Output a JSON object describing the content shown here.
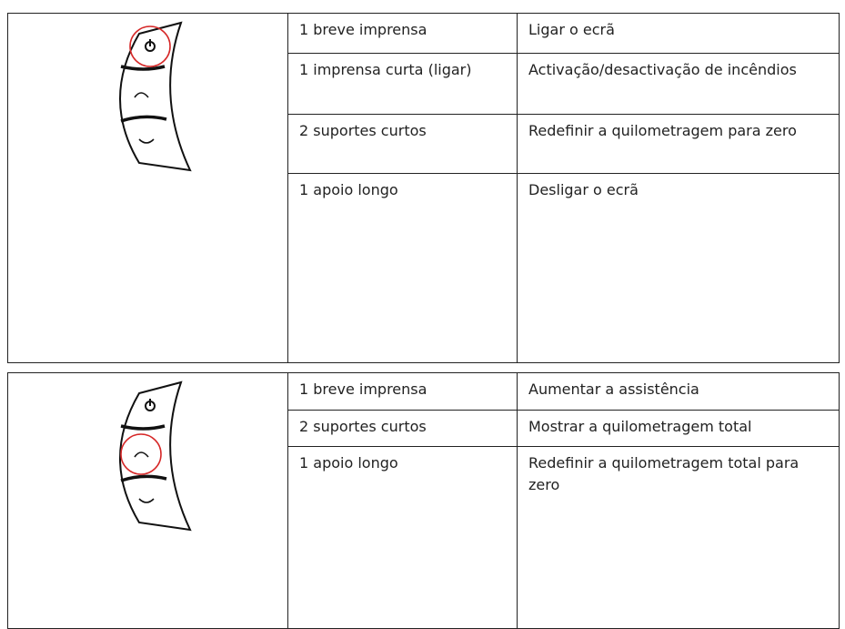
{
  "groups": [
    {
      "rows": [
        {
          "action": "1 breve imprensa",
          "result": "Ligar o ecrã"
        },
        {
          "action": "1 imprensa curta (ligar)",
          "result": "Activação/desactivação de incêndios"
        },
        {
          "action": "2 suportes curtos",
          "result": "Redefinir a quilometragem para zero"
        },
        {
          "action": "1 apoio longo",
          "result": "Desligar o ecrã"
        }
      ]
    },
    {
      "rows": [
        {
          "action": "1 breve imprensa",
          "result": "Aumentar a assistência"
        },
        {
          "action": "2 suportes curtos",
          "result": "Mostrar a quilometragem total"
        },
        {
          "action": "1 apoio longo",
          "result": "Redefinir a quilometragem total para zero"
        }
      ]
    }
  ]
}
